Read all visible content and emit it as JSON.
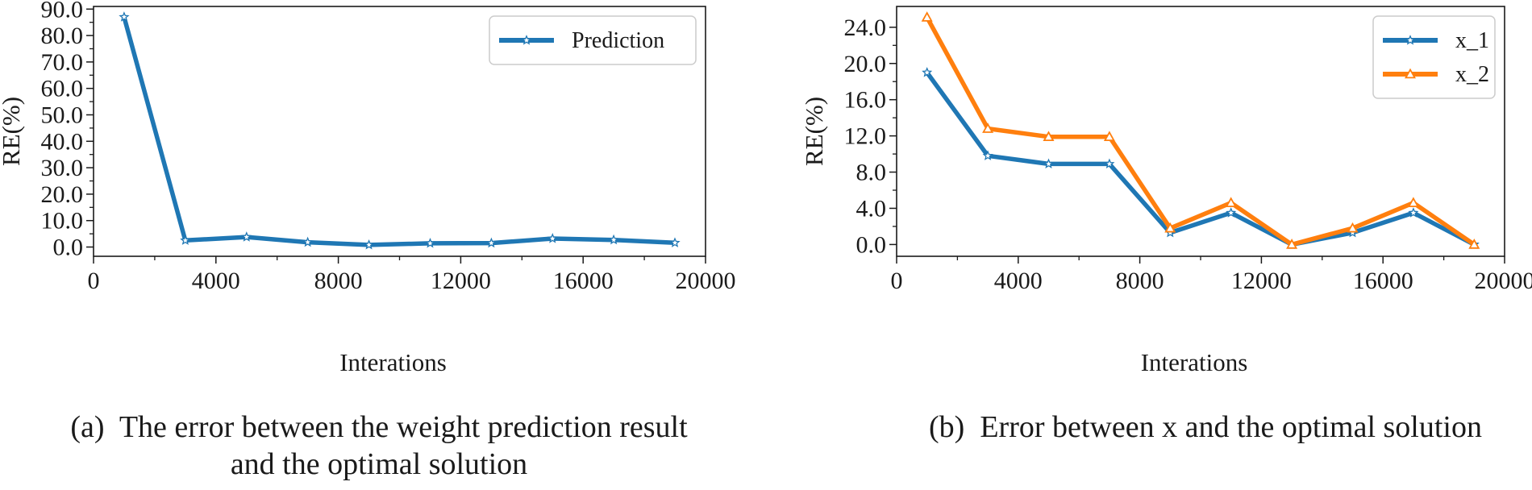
{
  "chart_data": [
    {
      "type": "line",
      "caption_label": "(a)",
      "caption_line1": "The error between the weight prediction result",
      "caption_line2": "and the optimal solution",
      "xlabel": "Interations",
      "ylabel": "RE(%)",
      "xlim": [
        0,
        20000
      ],
      "ylim": [
        -3.5,
        91
      ],
      "xticks": [
        0,
        4000,
        8000,
        12000,
        16000,
        20000
      ],
      "xtick_labels": [
        "0",
        "4000",
        "8000",
        "12000",
        "16000",
        "20000"
      ],
      "yticks": [
        0,
        10,
        20,
        30,
        40,
        50,
        60,
        70,
        80,
        90
      ],
      "ytick_labels": [
        "0.0",
        "10.0",
        "20.0",
        "30.0",
        "40.0",
        "50.0",
        "60.0",
        "70.0",
        "80.0",
        "90.0"
      ],
      "grid": false,
      "legend_position": "top-right",
      "x": [
        1000,
        3000,
        5000,
        7000,
        9000,
        11000,
        13000,
        15000,
        17000,
        19000
      ],
      "series": [
        {
          "name": "Prediction",
          "color": "#1f77b4",
          "marker": "star",
          "values": [
            87.0,
            2.5,
            3.8,
            1.8,
            0.8,
            1.4,
            1.5,
            3.2,
            2.7,
            1.6
          ]
        }
      ]
    },
    {
      "type": "line",
      "caption_label": "(b)",
      "caption_line1": "Error between x and the optimal solution",
      "xlabel": "Interations",
      "ylabel": "RE(%)",
      "xlim": [
        0,
        20000
      ],
      "ylim": [
        -1.3,
        26.3
      ],
      "xticks": [
        0,
        4000,
        8000,
        12000,
        16000,
        20000
      ],
      "xtick_labels": [
        "0",
        "4000",
        "8000",
        "12000",
        "16000",
        "20000"
      ],
      "yticks": [
        0,
        4,
        8,
        12,
        16,
        20,
        24
      ],
      "ytick_labels": [
        "0.0",
        "4.0",
        "8.0",
        "12.0",
        "16.0",
        "20.0",
        "24.0"
      ],
      "grid": false,
      "legend_position": "top-right",
      "x": [
        1000,
        3000,
        5000,
        7000,
        9000,
        11000,
        13000,
        15000,
        17000,
        19000
      ],
      "series": [
        {
          "name": "x_1",
          "color": "#1f77b4",
          "marker": "star",
          "values": [
            19.0,
            9.8,
            8.9,
            8.9,
            1.3,
            3.5,
            0.0,
            1.3,
            3.5,
            0.0
          ]
        },
        {
          "name": "x_2",
          "color": "#ff7f0e",
          "marker": "triangle",
          "values": [
            25.1,
            12.8,
            11.9,
            11.9,
            1.8,
            4.6,
            0.0,
            1.8,
            4.6,
            0.0
          ]
        }
      ]
    }
  ]
}
